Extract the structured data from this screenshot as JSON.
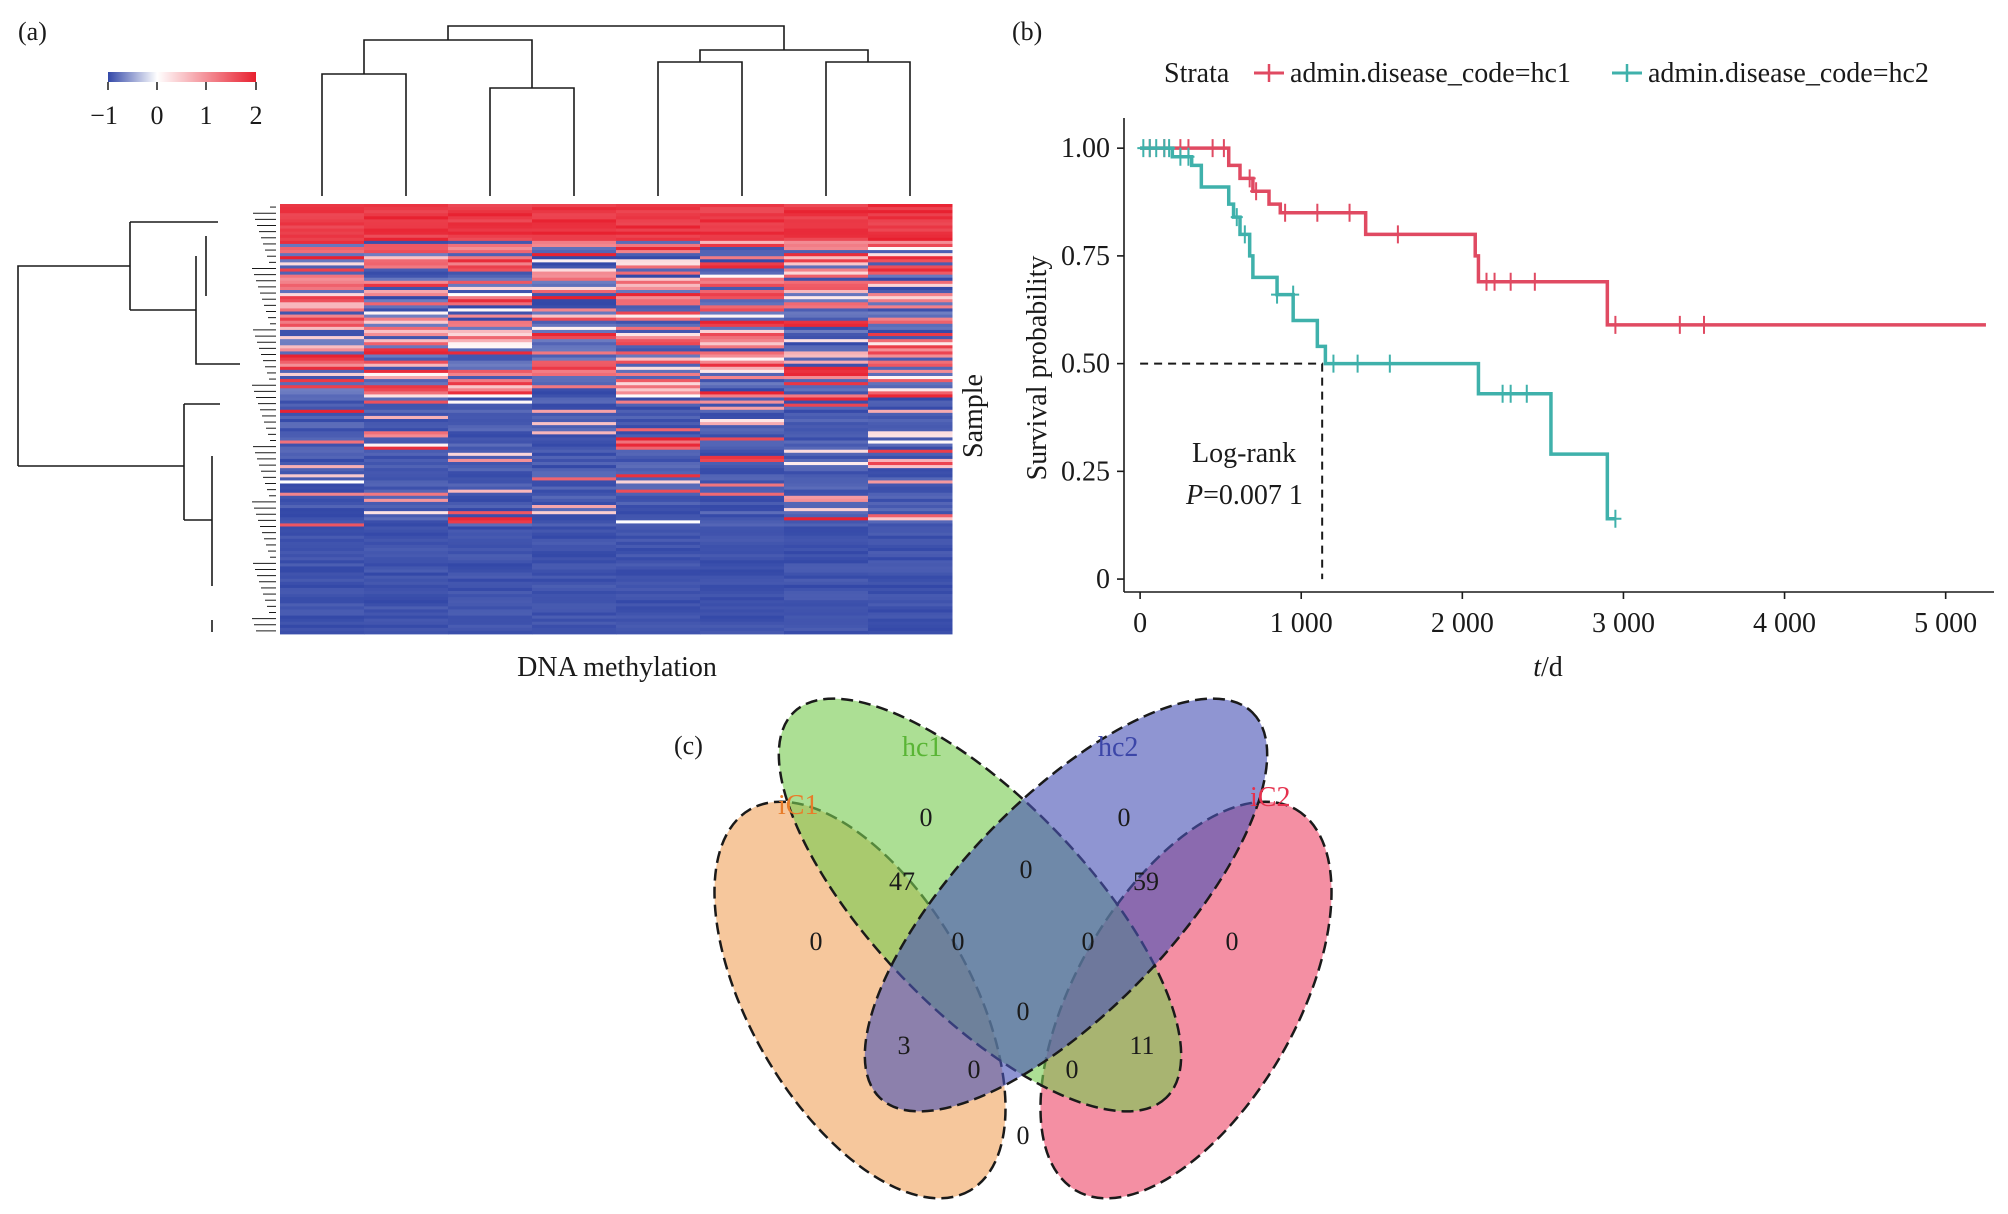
{
  "panels": {
    "a": {
      "label": "(a)"
    },
    "b": {
      "label": "(b)"
    },
    "c": {
      "label": "(c)"
    }
  },
  "heatmap": {
    "xlabel": "DNA methylation",
    "ylabel": "Sample",
    "legend_ticks": [
      "−1",
      "0",
      "1",
      "2"
    ],
    "legend_values": [
      -1,
      0,
      1,
      2
    ],
    "colors": {
      "low": "#3348a8",
      "mid": "#ffffff",
      "high": "#e8202f"
    }
  },
  "survival": {
    "legend_title": "Strata",
    "log_rank_label": "Log-rank",
    "p_prefix": "P",
    "p_value": "=0.007 1",
    "xlabel_italic": "t",
    "xlabel_unit": "/d",
    "ylabel": "Survival probability",
    "x_tick_labels": [
      "0",
      "1 000",
      "2 000",
      "3 000",
      "4 000",
      "5 000"
    ],
    "y_tick_labels": [
      "0",
      "0.25",
      "0.50",
      "0.75",
      "1.00"
    ]
  },
  "venn": {
    "sets": [
      {
        "label": "iC1",
        "color": "#f0a460"
      },
      {
        "label": "hc1",
        "color": "#79cc52"
      },
      {
        "label": "hc2",
        "color": "#4b54b6"
      },
      {
        "label": "iC2",
        "color": "#ee4a6a"
      }
    ],
    "counts": {
      "iC1_only": "0",
      "hc1_only": "0",
      "hc2_only": "0",
      "iC2_only": "0",
      "iC1_hc1": "47",
      "hc1_hc2": "0",
      "hc2_iC2": "59",
      "iC1_hc1_hc2": "0",
      "hc1_hc2_iC2": "0",
      "all_four": "0",
      "iC1_hc2": "3",
      "hc1_iC2": "11",
      "iC1_hc2_iC2": "0",
      "iC1_hc1_iC2": "0",
      "iC1_iC2": "0"
    }
  },
  "chart_data": [
    {
      "type": "heatmap",
      "xlabel": "DNA methylation",
      "ylabel": "Sample",
      "columns": 8,
      "color_scale": [
        -1,
        2
      ]
    },
    {
      "type": "line",
      "xlabel": "t/d",
      "ylabel": "Survival probability",
      "xlim": [
        -100,
        5300
      ],
      "ylim": [
        -0.03,
        1.07
      ],
      "x_ticks": [
        0,
        1000,
        2000,
        3000,
        4000,
        5000
      ],
      "y_ticks": [
        0,
        0.25,
        0.5,
        0.75,
        1.0
      ],
      "legend_placement": "top",
      "series": [
        {
          "name": "admin.disease_code=hc1",
          "color": "#e04a62",
          "steps": [
            [
              0,
              1.0
            ],
            [
              550,
              0.96
            ],
            [
              620,
              0.93
            ],
            [
              700,
              0.9
            ],
            [
              800,
              0.87
            ],
            [
              870,
              0.85
            ],
            [
              1400,
              0.8
            ],
            [
              2080,
              0.75
            ],
            [
              2100,
              0.69
            ],
            [
              2900,
              0.59
            ],
            [
              5250,
              0.59
            ]
          ],
          "censored": [
            [
              60,
              1.0
            ],
            [
              150,
              1.0
            ],
            [
              250,
              1.0
            ],
            [
              300,
              1.0
            ],
            [
              450,
              1.0
            ],
            [
              520,
              1.0
            ],
            [
              680,
              0.93
            ],
            [
              720,
              0.9
            ],
            [
              900,
              0.85
            ],
            [
              1100,
              0.85
            ],
            [
              1300,
              0.85
            ],
            [
              1600,
              0.8
            ],
            [
              2150,
              0.69
            ],
            [
              2200,
              0.69
            ],
            [
              2300,
              0.69
            ],
            [
              2450,
              0.69
            ],
            [
              2950,
              0.59
            ],
            [
              3350,
              0.59
            ],
            [
              3500,
              0.59
            ]
          ]
        },
        {
          "name": "admin.disease_code=hc2",
          "color": "#3fb1ab",
          "steps": [
            [
              0,
              1.0
            ],
            [
              200,
              0.98
            ],
            [
              320,
              0.96
            ],
            [
              380,
              0.91
            ],
            [
              550,
              0.87
            ],
            [
              580,
              0.84
            ],
            [
              620,
              0.8
            ],
            [
              680,
              0.75
            ],
            [
              700,
              0.7
            ],
            [
              850,
              0.66
            ],
            [
              950,
              0.6
            ],
            [
              1100,
              0.54
            ],
            [
              1150,
              0.5
            ],
            [
              2100,
              0.43
            ],
            [
              2550,
              0.29
            ],
            [
              2900,
              0.14
            ],
            [
              2950,
              0.14
            ]
          ],
          "censored": [
            [
              20,
              1.0
            ],
            [
              60,
              1.0
            ],
            [
              100,
              1.0
            ],
            [
              150,
              1.0
            ],
            [
              180,
              1.0
            ],
            [
              250,
              0.98
            ],
            [
              300,
              0.98
            ],
            [
              600,
              0.84
            ],
            [
              650,
              0.8
            ],
            [
              850,
              0.66
            ],
            [
              950,
              0.66
            ],
            [
              1200,
              0.5
            ],
            [
              1350,
              0.5
            ],
            [
              1550,
              0.5
            ],
            [
              2250,
              0.43
            ],
            [
              2300,
              0.43
            ],
            [
              2400,
              0.43
            ],
            [
              2950,
              0.14
            ]
          ]
        }
      ],
      "median_survival": {
        "x": 1130,
        "y": 0.5
      },
      "annotation": "Log-rank P=0.007 1"
    }
  ]
}
